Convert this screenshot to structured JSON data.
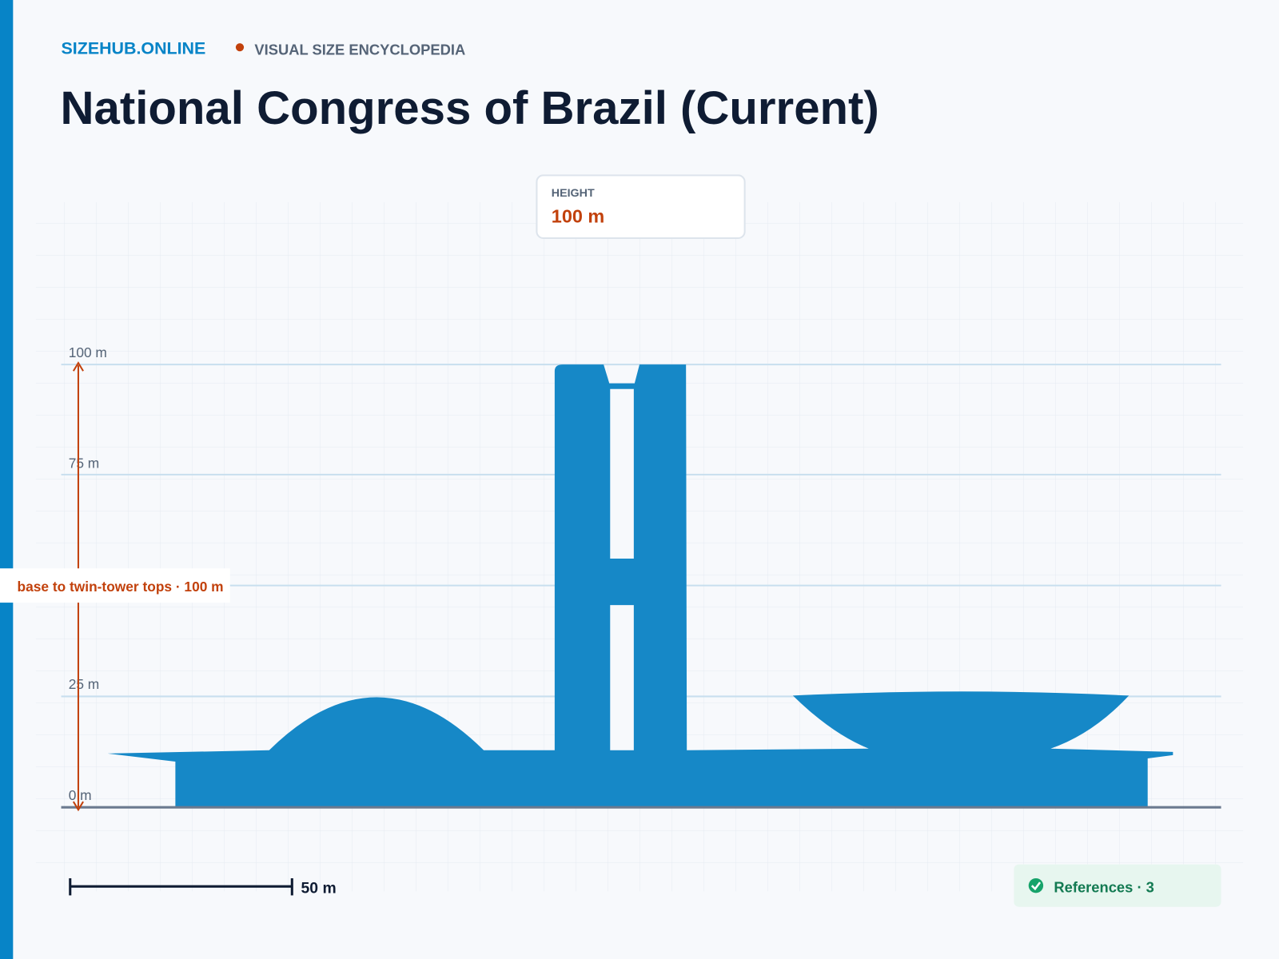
{
  "header": {
    "brand": "SIZEHUB.ONLINE",
    "section": "VISUAL SIZE ENCYCLOPEDIA"
  },
  "title": "National Congress of Brazil (Current)",
  "height_card": {
    "label": "HEIGHT",
    "value": "100 m"
  },
  "ruler": {
    "ticks": [
      "100 m",
      "75 m",
      "25 m",
      "0 m"
    ]
  },
  "annotation": "base to twin-tower tops · 100 m",
  "scale_bar": "50 m",
  "references": "References · 3"
}
